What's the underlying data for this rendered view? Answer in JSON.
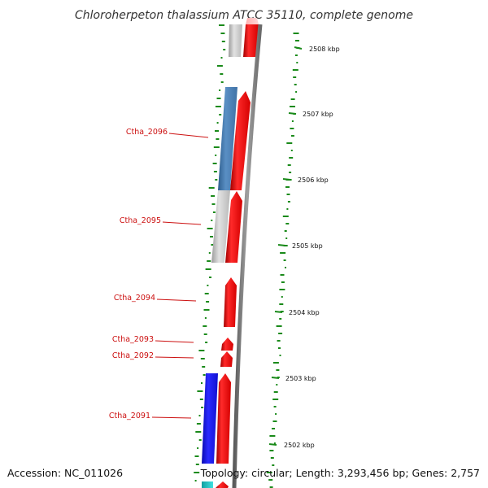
{
  "title": "Chloroherpeton thalassium ATCC 35110, complete genome",
  "footer": {
    "accession": "Accession: NC_011026",
    "summary": "Topology: circular; Length: 3,293,456 bp; Genes: 2,757"
  },
  "scale": {
    "unit": "kbp",
    "ticks": [
      "2508 kbp",
      "2507 kbp",
      "2506 kbp",
      "2505 kbp",
      "2504 kbp",
      "2503 kbp",
      "2502 kbp"
    ]
  },
  "genes": [
    {
      "label": "Ctha_2096"
    },
    {
      "label": "Ctha_2095"
    },
    {
      "label": "Ctha_2094"
    },
    {
      "label": "Ctha_2093"
    },
    {
      "label": "Ctha_2092"
    },
    {
      "label": "Ctha_2091"
    }
  ],
  "colors": {
    "backbone": "#888888",
    "gene_forward": "#e01010",
    "gene_dark_label": "#cc1010",
    "feature_steelblue": "#4a7fb5",
    "feature_blue": "#1a1ae0",
    "feature_gray": "#c8c8c8",
    "feature_cyan": "#22cccc",
    "gc_marks": "#1a8a1a"
  }
}
